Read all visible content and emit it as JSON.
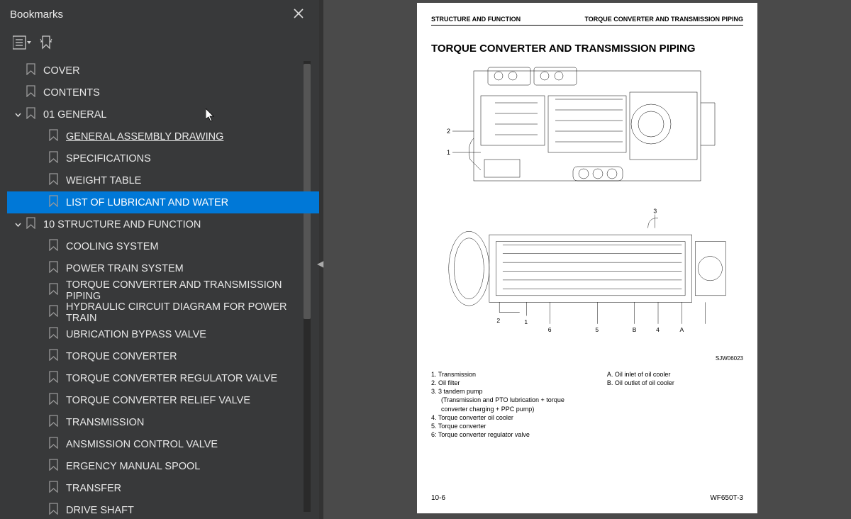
{
  "sidebar": {
    "title": "Bookmarks",
    "items": [
      {
        "label": "COVER",
        "level": 0,
        "chev": "",
        "selected": false
      },
      {
        "label": "CONTENTS",
        "level": 0,
        "chev": "",
        "selected": false
      },
      {
        "label": "01 GENERAL",
        "level": 0,
        "chev": "down",
        "selected": false
      },
      {
        "label": "GENERAL ASSEMBLY DRAWING",
        "level": 1,
        "chev": "",
        "selected": false,
        "underlined": true
      },
      {
        "label": "SPECIFICATIONS",
        "level": 1,
        "chev": "",
        "selected": false
      },
      {
        "label": "WEIGHT TABLE",
        "level": 1,
        "chev": "",
        "selected": false
      },
      {
        "label": "LIST OF LUBRICANT AND WATER",
        "level": 1,
        "chev": "",
        "selected": true
      },
      {
        "label": "10 STRUCTURE AND FUNCTION",
        "level": 0,
        "chev": "down",
        "selected": false
      },
      {
        "label": "COOLING SYSTEM",
        "level": 1,
        "chev": "",
        "selected": false
      },
      {
        "label": "POWER TRAIN SYSTEM",
        "level": 1,
        "chev": "",
        "selected": false
      },
      {
        "label": "TORQUE CONVERTER AND TRANSMISSION PIPING",
        "level": 1,
        "chev": "",
        "selected": false
      },
      {
        "label": "HYDRAULIC CIRCUIT DIAGRAM FOR POWER TRAIN",
        "level": 1,
        "chev": "",
        "selected": false
      },
      {
        "label": "UBRICATION BYPASS VALVE",
        "level": 1,
        "chev": "",
        "selected": false
      },
      {
        "label": "TORQUE CONVERTER",
        "level": 1,
        "chev": "",
        "selected": false
      },
      {
        "label": "TORQUE CONVERTER REGULATOR VALVE",
        "level": 1,
        "chev": "",
        "selected": false
      },
      {
        "label": "TORQUE CONVERTER RELIEF VALVE",
        "level": 1,
        "chev": "",
        "selected": false
      },
      {
        "label": "TRANSMISSION",
        "level": 1,
        "chev": "",
        "selected": false
      },
      {
        "label": "ANSMISSION CONTROL VALVE",
        "level": 1,
        "chev": "",
        "selected": false
      },
      {
        "label": "ERGENCY MANUAL SPOOL",
        "level": 1,
        "chev": "",
        "selected": false
      },
      {
        "label": "TRANSFER",
        "level": 1,
        "chev": "",
        "selected": false
      },
      {
        "label": "DRIVE SHAFT",
        "level": 1,
        "chev": "",
        "selected": false
      }
    ]
  },
  "page": {
    "header_left": "STRUCTURE AND FUNCTION",
    "header_right": "TORQUE CONVERTER AND TRANSMISSION PIPING",
    "title": "TORQUE CONVERTER AND TRANSMISSION PIPING",
    "ref_code": "SJW06023",
    "legend_left": [
      "1.  Transmission",
      "2.  Oil filter",
      "3.  3 tandem pump",
      "     (Transmission and PTO lubrication + torque",
      "     converter charging + PPC pump)",
      "4.  Torque converter oil cooler",
      "5.  Torque converter",
      "6:  Torque converter regulator valve"
    ],
    "legend_right": [
      "A.  Oil inlet of oil cooler",
      "B.  Oil outlet of oil cooler"
    ],
    "footer_left": "10-6",
    "footer_right": "WF650T-3"
  },
  "colors": {
    "sidebar_bg": "#38393a",
    "selection": "#0078d7",
    "content_bg": "#4a4a4a"
  }
}
